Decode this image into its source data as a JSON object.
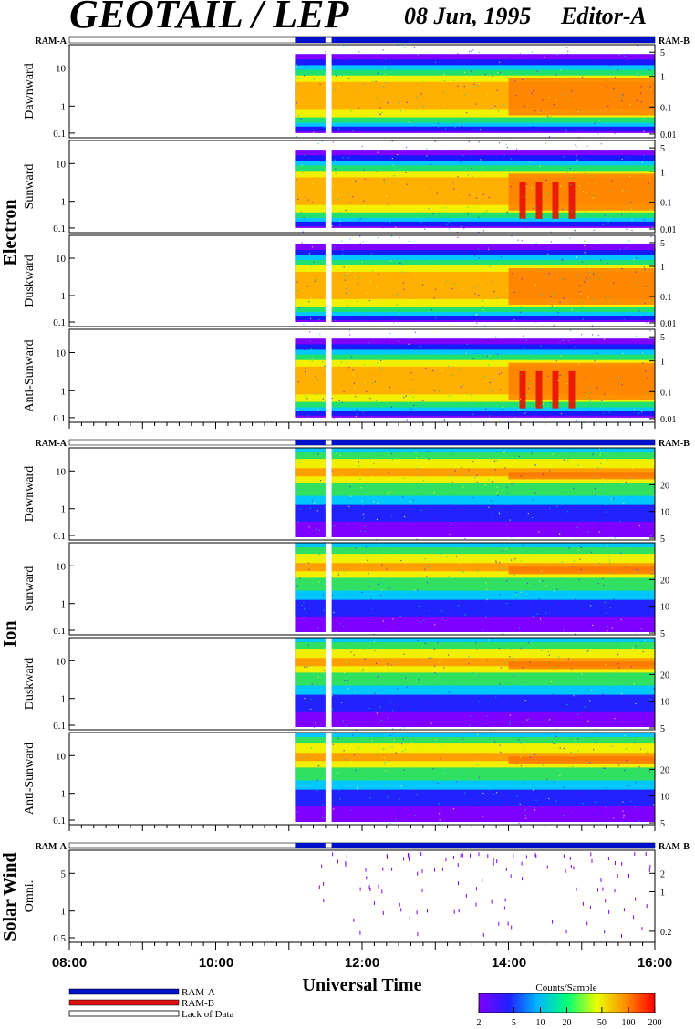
{
  "title": "GEOTAIL / LEP",
  "date": "08 Jun, 1995",
  "editor": "Editor-A",
  "chart_data": {
    "type": "heatmap",
    "x_axis": {
      "label": "Universal Time",
      "range": [
        "08:00",
        "16:00"
      ],
      "ticks": [
        "08:00",
        "10:00",
        "12:00",
        "14:00",
        "16:00"
      ]
    },
    "data_start": "11:05",
    "data_gap": [
      "11:30",
      "11:35"
    ],
    "groups": [
      {
        "name": "Electron",
        "panels": [
          {
            "label": "Dawnward",
            "left_ticks": [
              "10",
              "1",
              "0.1"
            ],
            "right_ticks": [
              "5",
              "1",
              "0.1",
              "0.01"
            ]
          },
          {
            "label": "Sunward",
            "left_ticks": [
              "10",
              "1",
              "0.1"
            ],
            "right_ticks": [
              "5",
              "1",
              "0.1",
              "0.01"
            ]
          },
          {
            "label": "Duskward",
            "left_ticks": [
              "10",
              "1",
              "0.1"
            ],
            "right_ticks": [
              "5",
              "1",
              "0.1",
              "0.01"
            ]
          },
          {
            "label": "Anti-Sunward",
            "left_ticks": [
              "10",
              "1",
              "0.1"
            ],
            "right_ticks": [
              "5",
              "1",
              "0.1",
              "0.01"
            ]
          }
        ]
      },
      {
        "name": "Ion",
        "panels": [
          {
            "label": "Dawnward",
            "left_ticks": [
              "10",
              "1",
              "0.1"
            ],
            "right_ticks": [
              "20",
              "10",
              "5"
            ]
          },
          {
            "label": "Sunward",
            "left_ticks": [
              "10",
              "1",
              "0.1"
            ],
            "right_ticks": [
              "20",
              "10",
              "5"
            ]
          },
          {
            "label": "Duskward",
            "left_ticks": [
              "10",
              "1",
              "0.1"
            ],
            "right_ticks": [
              "20",
              "10",
              "5"
            ]
          },
          {
            "label": "Anti-Sunward",
            "left_ticks": [
              "10",
              "1",
              "0.1"
            ],
            "right_ticks": [
              "20",
              "10",
              "5"
            ]
          }
        ]
      },
      {
        "name": "Solar Wind",
        "panels": [
          {
            "label": "Omni.",
            "left_ticks": [
              "5",
              "1",
              "0.5"
            ],
            "right_ticks": [
              "2",
              "1",
              "0.2"
            ]
          }
        ]
      }
    ],
    "mode_bar": {
      "left_label": "RAM-A",
      "right_label": "RAM-B"
    },
    "legend": {
      "items": [
        {
          "label": "RAM-A",
          "color": "#0010c8"
        },
        {
          "label": "RAM-B",
          "color": "#dd1010"
        },
        {
          "label": "Lack of Data",
          "color": "#ffffff"
        }
      ]
    },
    "colorbar": {
      "title": "Counts/Sample",
      "ticks": [
        "2",
        "5",
        "10",
        "20",
        "50",
        "100",
        "200"
      ],
      "scale": "log",
      "colors": [
        "#8000ff",
        "#0000ff",
        "#00c8ff",
        "#00ff80",
        "#ffff00",
        "#ff8000",
        "#ff0000"
      ]
    }
  }
}
